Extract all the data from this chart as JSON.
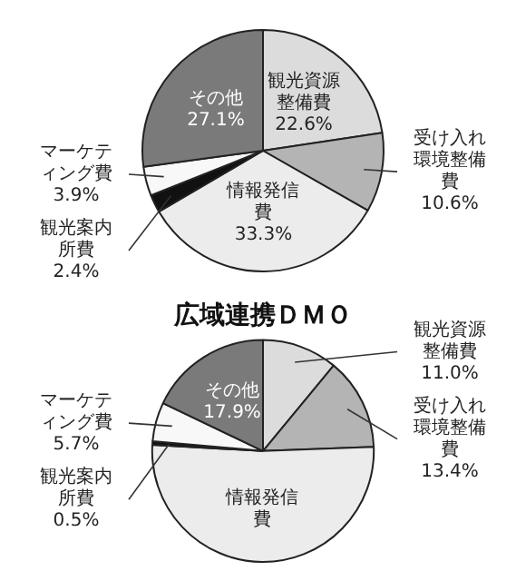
{
  "chart_data": [
    {
      "type": "pie",
      "categories": [
        "観光資源整備費",
        "受け入れ環境整備費",
        "情報発信費",
        "観光案内所費",
        "マーケティング費",
        "その他"
      ],
      "values": [
        22.6,
        10.6,
        33.3,
        2.4,
        3.9,
        27.1
      ],
      "colors": [
        "#dcdcdc",
        "#b4b4b4",
        "#ececec",
        "#111111",
        "#f8f8f8",
        "#7a7a7a"
      ],
      "value_labels": [
        "22.6%",
        "10.6%",
        "33.3%",
        "2.4%",
        "3.9%",
        "27.1%"
      ]
    },
    {
      "type": "pie",
      "title": "広域連携ＤＭＯ",
      "categories": [
        "観光資源整備費",
        "受け入れ環境整備費",
        "情報発信費",
        "観光案内所費",
        "マーケティング費",
        "その他"
      ],
      "values": [
        11.0,
        13.4,
        51.5,
        0.5,
        5.7,
        17.9
      ],
      "colors": [
        "#dcdcdc",
        "#b4b4b4",
        "#ececec",
        "#111111",
        "#f8f8f8",
        "#7a7a7a"
      ],
      "value_labels": [
        "11.0%",
        "13.4%",
        null,
        "0.5%",
        "5.7%",
        "17.9%"
      ]
    }
  ]
}
